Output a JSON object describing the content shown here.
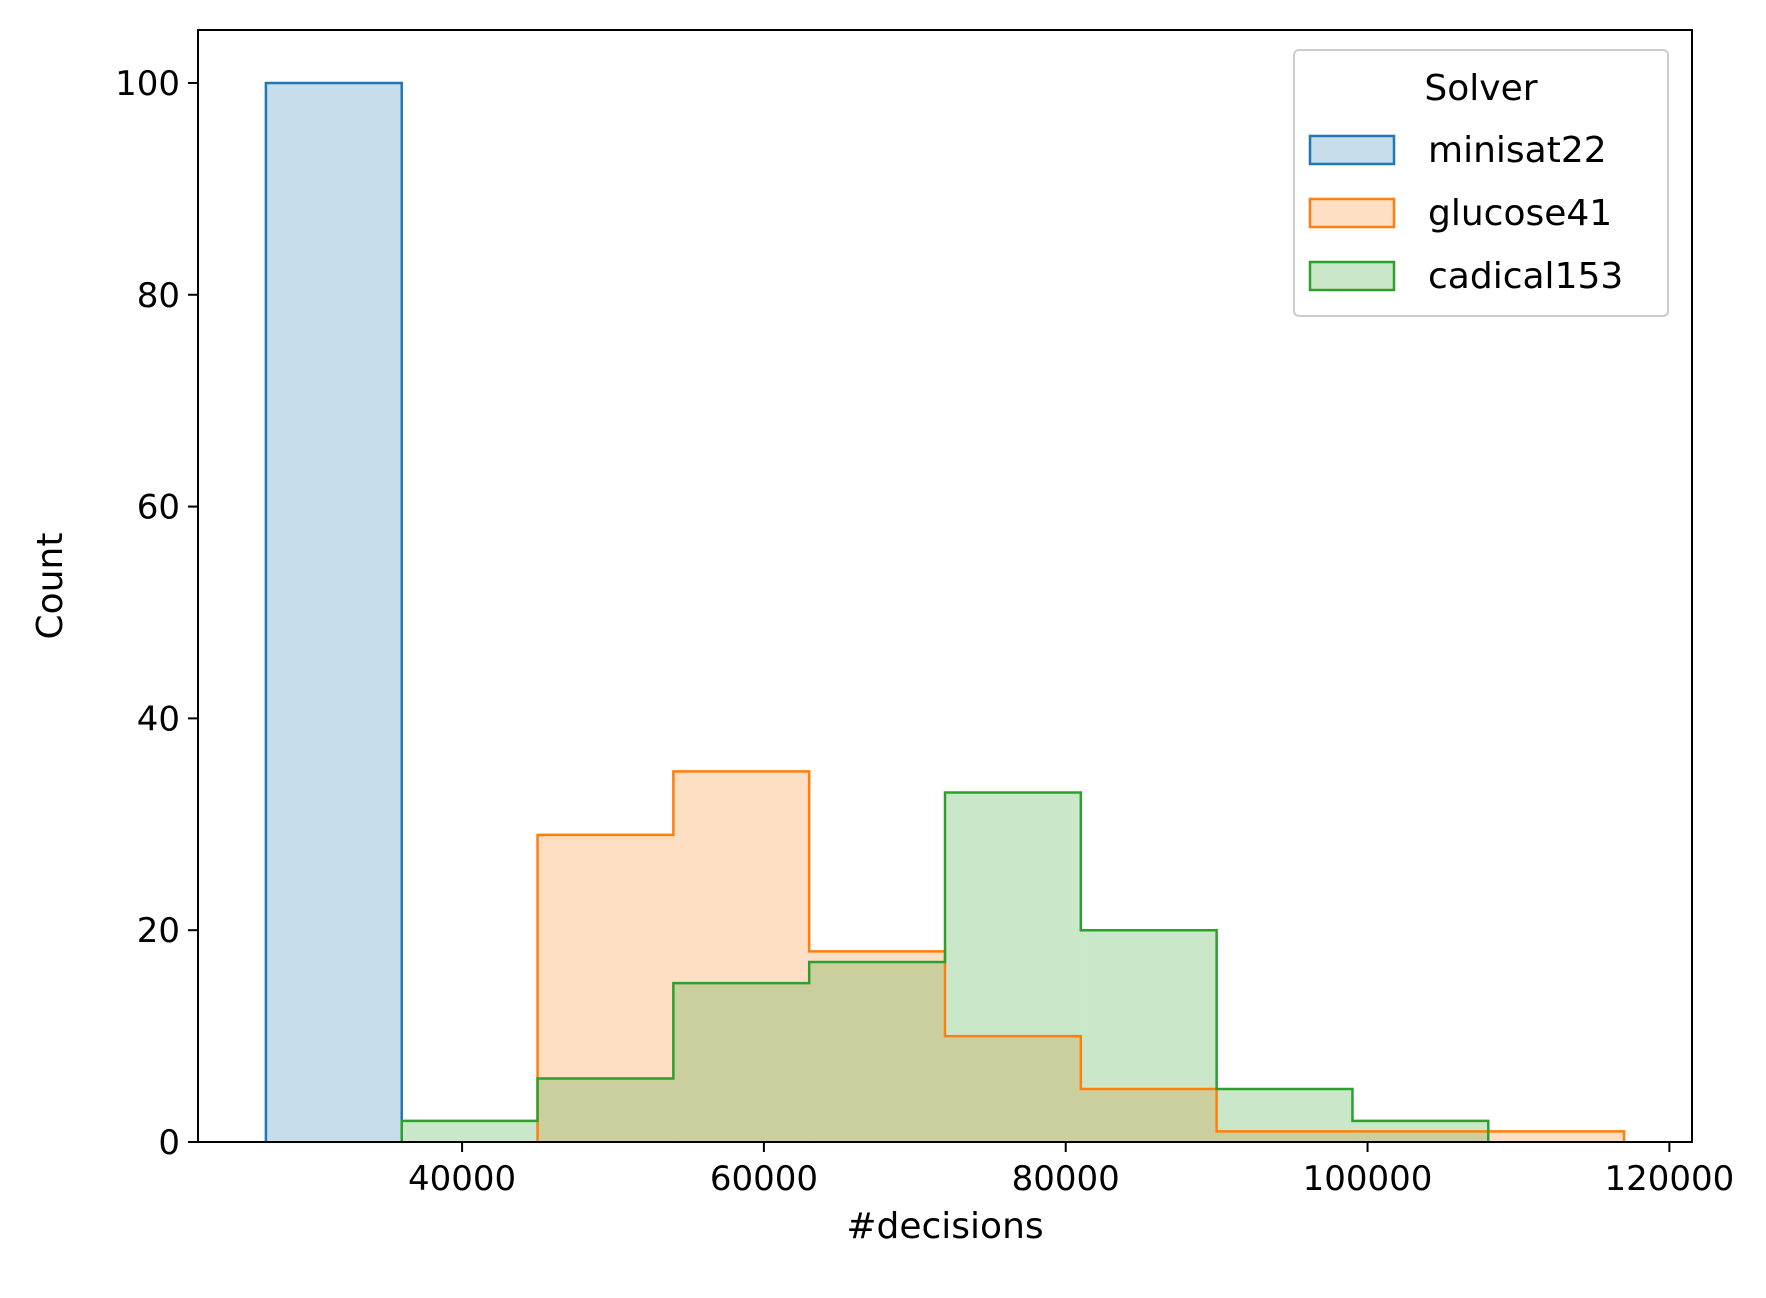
{
  "chart_data": {
    "type": "histogram",
    "xlabel": "#decisions",
    "ylabel": "Count",
    "xlim": [
      22500,
      121500
    ],
    "ylim": [
      0,
      105
    ],
    "xticks": [
      40000,
      60000,
      80000,
      100000,
      120000
    ],
    "yticks": [
      0,
      20,
      40,
      60,
      80,
      100
    ],
    "legend": {
      "title": "Solver",
      "position": "top-right"
    },
    "series": [
      {
        "name": "minisat22",
        "color": "#1f77b4",
        "fill": "#c6dcec",
        "bins": [
          {
            "x0": 27000,
            "x1": 36000,
            "count": 100
          }
        ]
      },
      {
        "name": "glucose41",
        "color": "#ff7f0e",
        "fill": "#ffdcc0",
        "bins": [
          {
            "x0": 45000,
            "x1": 54000,
            "count": 29
          },
          {
            "x0": 54000,
            "x1": 63000,
            "count": 35
          },
          {
            "x0": 63000,
            "x1": 72000,
            "count": 18
          },
          {
            "x0": 72000,
            "x1": 81000,
            "count": 10
          },
          {
            "x0": 81000,
            "x1": 90000,
            "count": 5
          },
          {
            "x0": 90000,
            "x1": 99000,
            "count": 1
          },
          {
            "x0": 99000,
            "x1": 108000,
            "count": 1
          },
          {
            "x0": 108000,
            "x1": 117000,
            "count": 1
          }
        ]
      },
      {
        "name": "cadical153",
        "color": "#2ca02c",
        "fill": "#cae7ca",
        "bins": [
          {
            "x0": 36000,
            "x1": 45000,
            "count": 2
          },
          {
            "x0": 45000,
            "x1": 54000,
            "count": 6
          },
          {
            "x0": 54000,
            "x1": 63000,
            "count": 15
          },
          {
            "x0": 63000,
            "x1": 72000,
            "count": 17
          },
          {
            "x0": 72000,
            "x1": 81000,
            "count": 33
          },
          {
            "x0": 81000,
            "x1": 90000,
            "count": 20
          },
          {
            "x0": 90000,
            "x1": 99000,
            "count": 5
          },
          {
            "x0": 99000,
            "x1": 108000,
            "count": 2
          }
        ]
      }
    ]
  }
}
